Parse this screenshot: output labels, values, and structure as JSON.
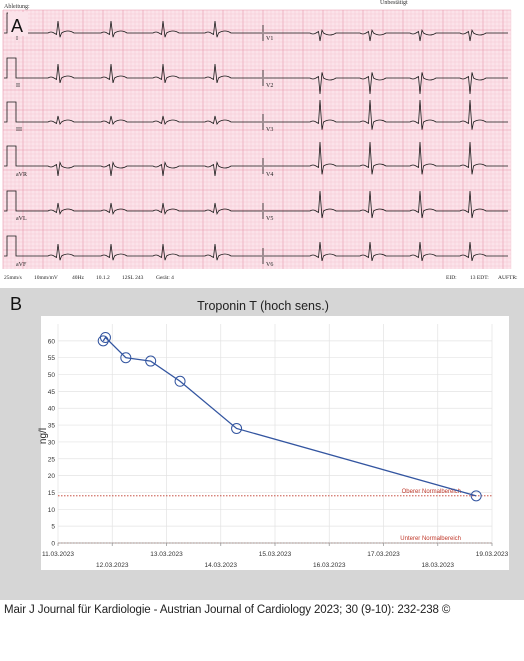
{
  "panel_a": {
    "label": "A",
    "header_left": "Ableitung:",
    "header_right": "Unbestätigt",
    "leads_left": [
      "I",
      "II",
      "III",
      "aVR",
      "aVL",
      "aVF"
    ],
    "leads_right": [
      "V1",
      "V2",
      "V3",
      "V4",
      "V5",
      "V6"
    ],
    "footer_left": [
      "25mm/s",
      "10mm/mV",
      "40Hz",
      "10.1.2",
      "12SL 243",
      "Gerät: 4"
    ],
    "footer_right": [
      "EID:",
      "13 EDT:",
      "AUFTR:"
    ],
    "colors": {
      "grid": "#f2b8c6",
      "grid_major": "#e895aa",
      "trace": "#1a1a1a",
      "paper": "#fbe3ea"
    }
  },
  "panel_b": {
    "label": "B"
  },
  "caption": "Mair J Journal für Kardiologie - Austrian Journal of Cardiology 2023; 30 (9-10): 232-238 ©",
  "chart_data": {
    "type": "line",
    "title": "Troponin T (hoch sens.)",
    "xlabel": "",
    "ylabel": "ng/l",
    "ylim": [
      0,
      65
    ],
    "yticks": [
      0,
      5,
      10,
      15,
      20,
      25,
      30,
      35,
      40,
      45,
      50,
      55,
      60
    ],
    "xlim": [
      "11.03.2023",
      "19.03.2023"
    ],
    "xticks_upper": [
      "11.03.2023",
      "13.03.2023",
      "15.03.2023",
      "17.03.2023",
      "19.03.2023"
    ],
    "xticks_lower": [
      "12.03.2023",
      "14.03.2023",
      "16.03.2023",
      "18.03.2023"
    ],
    "series": [
      {
        "x": [
          "11.03.2023 20:00",
          "11.03.2023 21:00",
          "12.03.2023 06:00",
          "12.03.2023 17:00",
          "13.03.2023 06:00",
          "14.03.2023 07:00",
          "18.03.2023 17:00"
        ],
        "values": [
          60,
          61,
          55,
          54,
          48,
          34,
          14
        ],
        "color": "#3355a0"
      }
    ],
    "reference_lines": [
      {
        "label": "Oberer Normalbereich",
        "value": 14,
        "color": "#c0392b"
      },
      {
        "label": "Unterer Normalbereich",
        "value": 0,
        "color": "#c0392b"
      }
    ],
    "grid": true
  }
}
